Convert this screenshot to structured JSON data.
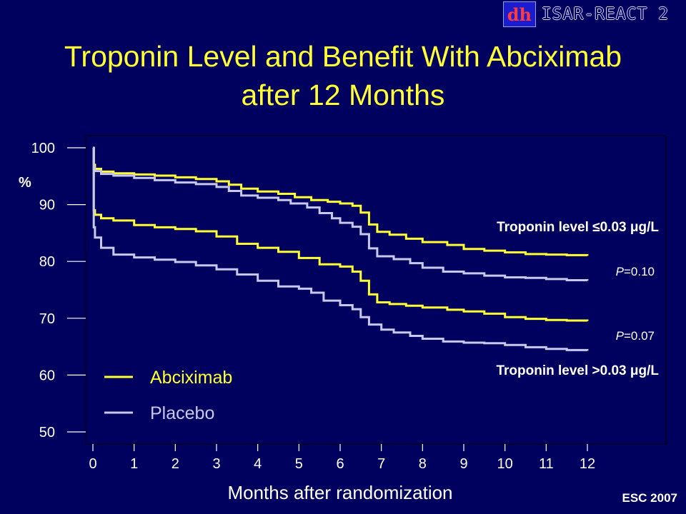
{
  "header": {
    "study_name": "ISAR-REACT 2",
    "logo_text": "dh",
    "title_line1": "Troponin Level and Benefit With Abciximab",
    "title_line2": "after 12 Months"
  },
  "footer": {
    "note": "ESC 2007"
  },
  "colors": {
    "background": "#00005e",
    "title": "#ffff33",
    "abciximab": "#ffff33",
    "placebo": "#c8c8ec",
    "text": "#ffffff"
  },
  "chart_data": {
    "type": "line",
    "title": "Troponin Level and Benefit With Abciximab after 12 Months",
    "xlabel": "Months after randomization",
    "ylabel": "%",
    "xlim": [
      -0.2,
      13.6
    ],
    "ylim": [
      48,
      102
    ],
    "xticks": [
      0,
      1,
      2,
      3,
      4,
      5,
      6,
      7,
      8,
      9,
      10,
      11,
      12
    ],
    "yticks": [
      50,
      60,
      70,
      80,
      90,
      100
    ],
    "grid": false,
    "legend": {
      "placement": "bottom-left",
      "items": [
        {
          "label": "Abciximab",
          "color": "#ffff33"
        },
        {
          "label": "Placebo",
          "color": "#c8c8ec"
        }
      ]
    },
    "annotations": {
      "group_low": "Troponin level ≤0.03 μg/L",
      "group_high": "Troponin level >0.03 μg/L",
      "p_low_italic": "P",
      "p_low_value": "=0.10",
      "p_high_italic": "P",
      "p_high_value": "=0.07"
    },
    "series": [
      {
        "name": "Abciximab",
        "group": "Troponin level ≤0.03 μg/L",
        "color": "#ffff33",
        "points": [
          [
            0,
            100
          ],
          [
            0.02,
            97
          ],
          [
            0.05,
            96.3
          ],
          [
            0.2,
            95.8
          ],
          [
            0.5,
            95.5
          ],
          [
            1,
            95.3
          ],
          [
            1.5,
            95.1
          ],
          [
            2,
            94.8
          ],
          [
            2.5,
            94.5
          ],
          [
            3,
            94.1
          ],
          [
            3.3,
            93.5
          ],
          [
            3.6,
            92.8
          ],
          [
            4,
            92.3
          ],
          [
            4.5,
            91.9
          ],
          [
            4.9,
            91.3
          ],
          [
            5.3,
            90.8
          ],
          [
            5.7,
            90.5
          ],
          [
            6,
            90.2
          ],
          [
            6.3,
            89.8
          ],
          [
            6.5,
            88.6
          ],
          [
            6.7,
            86.5
          ],
          [
            6.9,
            85.2
          ],
          [
            7.2,
            84.7
          ],
          [
            7.6,
            84
          ],
          [
            8,
            83.4
          ],
          [
            8.6,
            82.9
          ],
          [
            9,
            82.2
          ],
          [
            9.5,
            81.9
          ],
          [
            10,
            81.6
          ],
          [
            10.5,
            81.3
          ],
          [
            11,
            81.2
          ],
          [
            11.5,
            81.1
          ],
          [
            12,
            81.0
          ]
        ]
      },
      {
        "name": "Placebo",
        "group": "Troponin level ≤0.03 μg/L",
        "color": "#c8c8ec",
        "points": [
          [
            0,
            100
          ],
          [
            0.02,
            96.5
          ],
          [
            0.05,
            95.9
          ],
          [
            0.2,
            95.4
          ],
          [
            0.5,
            95.1
          ],
          [
            1,
            94.7
          ],
          [
            1.5,
            94.3
          ],
          [
            2,
            93.9
          ],
          [
            2.5,
            93.6
          ],
          [
            3,
            93.1
          ],
          [
            3.3,
            92.4
          ],
          [
            3.6,
            91.6
          ],
          [
            4,
            91.2
          ],
          [
            4.5,
            90.8
          ],
          [
            4.8,
            90.2
          ],
          [
            5.2,
            89.5
          ],
          [
            5.5,
            88.5
          ],
          [
            5.8,
            87.6
          ],
          [
            6,
            86.8
          ],
          [
            6.3,
            86.1
          ],
          [
            6.5,
            84.8
          ],
          [
            6.7,
            82.3
          ],
          [
            6.9,
            80.9
          ],
          [
            7.3,
            80.4
          ],
          [
            7.7,
            79.7
          ],
          [
            8,
            78.9
          ],
          [
            8.5,
            78.2
          ],
          [
            9,
            77.9
          ],
          [
            9.5,
            77.5
          ],
          [
            10,
            77.2
          ],
          [
            10.5,
            77.1
          ],
          [
            11,
            76.9
          ],
          [
            11.5,
            76.7
          ],
          [
            12,
            76.6
          ]
        ]
      },
      {
        "name": "Abciximab",
        "group": "Troponin level >0.03 μg/L",
        "color": "#ffff33",
        "points": [
          [
            0,
            100
          ],
          [
            0.02,
            89
          ],
          [
            0.05,
            88.2
          ],
          [
            0.2,
            87.6
          ],
          [
            0.5,
            87.2
          ],
          [
            1,
            86.4
          ],
          [
            1.5,
            86.0
          ],
          [
            2,
            85.7
          ],
          [
            2.5,
            85.3
          ],
          [
            3,
            84.4
          ],
          [
            3.5,
            83.1
          ],
          [
            4,
            82.4
          ],
          [
            4.5,
            81.7
          ],
          [
            5,
            80.6
          ],
          [
            5.5,
            79.5
          ],
          [
            6,
            79.1
          ],
          [
            6.3,
            78.2
          ],
          [
            6.5,
            76.6
          ],
          [
            6.7,
            74.2
          ],
          [
            6.9,
            72.8
          ],
          [
            7.2,
            72.5
          ],
          [
            7.6,
            72.2
          ],
          [
            8,
            71.9
          ],
          [
            8.6,
            71.5
          ],
          [
            9,
            71.2
          ],
          [
            9.5,
            70.8
          ],
          [
            10,
            70.2
          ],
          [
            10.5,
            69.9
          ],
          [
            11,
            69.7
          ],
          [
            11.5,
            69.6
          ],
          [
            12,
            69.5
          ]
        ]
      },
      {
        "name": "Placebo",
        "group": "Troponin level >0.03 μg/L",
        "color": "#c8c8ec",
        "points": [
          [
            0,
            100
          ],
          [
            0.02,
            86
          ],
          [
            0.05,
            84.2
          ],
          [
            0.2,
            82.4
          ],
          [
            0.5,
            81.2
          ],
          [
            1,
            80.7
          ],
          [
            1.5,
            80.3
          ],
          [
            2,
            79.9
          ],
          [
            2.5,
            79.3
          ],
          [
            3,
            78.6
          ],
          [
            3.5,
            77.7
          ],
          [
            4,
            76.6
          ],
          [
            4.5,
            75.6
          ],
          [
            5,
            75.2
          ],
          [
            5.3,
            74.5
          ],
          [
            5.6,
            73.1
          ],
          [
            6,
            72.3
          ],
          [
            6.3,
            71.6
          ],
          [
            6.5,
            70.2
          ],
          [
            6.7,
            68.9
          ],
          [
            7,
            68.0
          ],
          [
            7.3,
            67.5
          ],
          [
            7.7,
            66.9
          ],
          [
            8,
            66.4
          ],
          [
            8.5,
            65.9
          ],
          [
            9,
            65.7
          ],
          [
            9.5,
            65.6
          ],
          [
            10,
            65.3
          ],
          [
            10.5,
            64.9
          ],
          [
            11,
            64.6
          ],
          [
            11.5,
            64.4
          ],
          [
            12,
            64.3
          ]
        ]
      }
    ]
  }
}
